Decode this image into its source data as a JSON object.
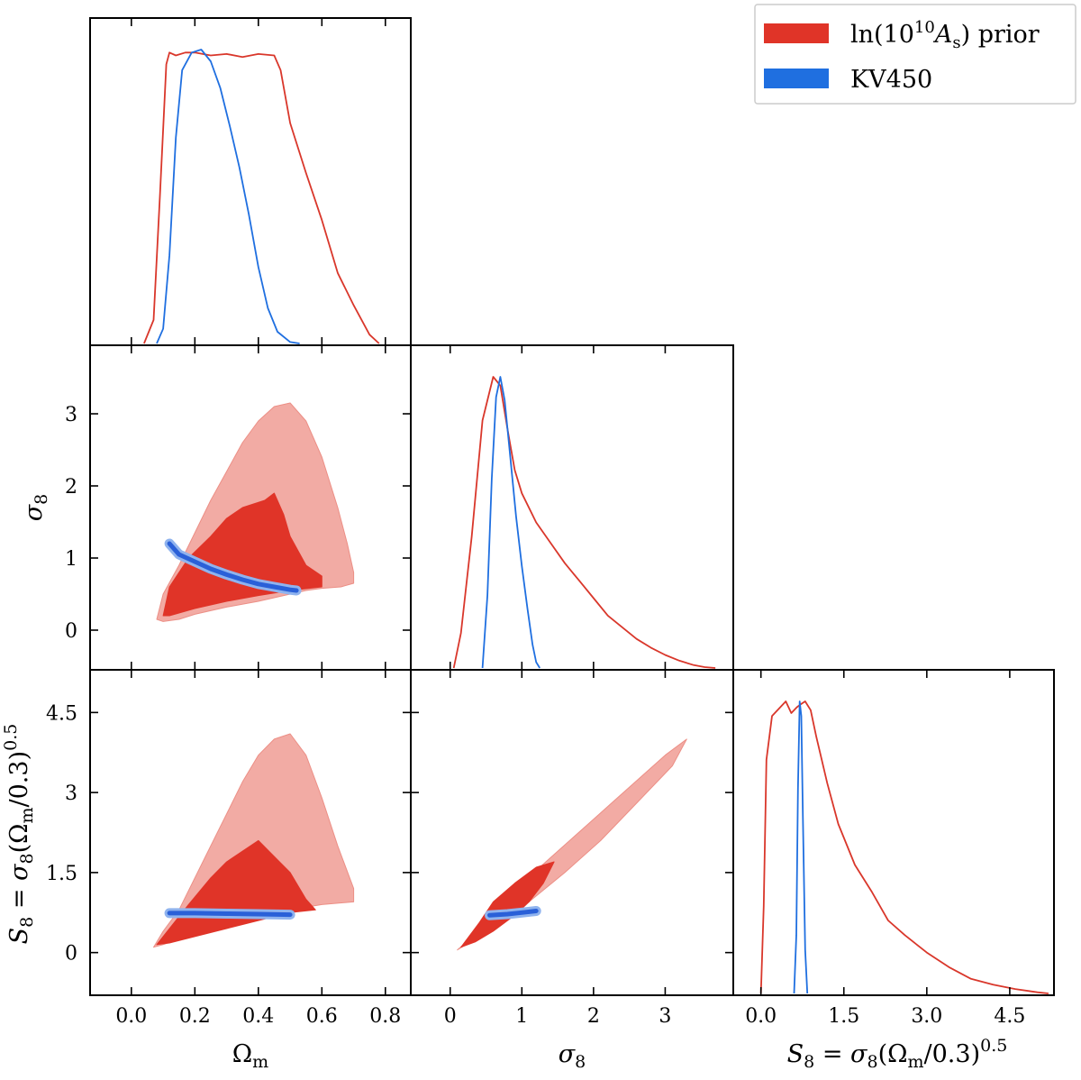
{
  "colors": {
    "prior_dark": "#e03428",
    "prior_light": "#f2aba4",
    "prior_line": "#d9372b",
    "kv_dark": "#2a60d8",
    "kv_light": "#8fb3ee",
    "kv_line": "#1f6fe0"
  },
  "legend": {
    "placement": "top-right",
    "items": [
      {
        "label": "ln(10^10 A_s) prior",
        "color": "#e03428"
      },
      {
        "label": "KV450",
        "color": "#1f6fe0"
      }
    ]
  },
  "axes": {
    "omega_m": {
      "label": "Ω_m",
      "ticks": [
        "0.0",
        "0.2",
        "0.4",
        "0.6",
        "0.8"
      ],
      "tick_values": [
        0.0,
        0.2,
        0.4,
        0.6,
        0.8
      ]
    },
    "sigma8": {
      "label": "σ_8",
      "ticks": [
        "0",
        "1",
        "2",
        "3"
      ],
      "tick_values": [
        0,
        1,
        2,
        3
      ]
    },
    "s8": {
      "label": "S_8 = σ_8(Ω_m/0.3)^0.5",
      "ticks": [
        "0",
        "1.5",
        "3",
        "4.5"
      ],
      "tick_values": [
        0,
        1.5,
        3,
        4.5
      ]
    },
    "s8_x": {
      "label": "S_8 = σ_8(Ω_m/0.3)^0.5",
      "ticks": [
        "0.0",
        "1.5",
        "3.0",
        "4.5"
      ],
      "tick_values": [
        0.0,
        1.5,
        3.0,
        4.5
      ]
    }
  },
  "chart_data": [
    {
      "type": "line",
      "panel": "Omega_m marginal",
      "xlim": [
        -0.13,
        0.88
      ],
      "series": [
        {
          "name": "ln(10^10 A_s) prior",
          "x": [
            0.04,
            0.07,
            0.09,
            0.11,
            0.12,
            0.14,
            0.17,
            0.2,
            0.25,
            0.3,
            0.35,
            0.4,
            0.45,
            0.47,
            0.5,
            0.55,
            0.6,
            0.65,
            0.7,
            0.75,
            0.78
          ],
          "y": [
            0,
            0.08,
            0.5,
            0.95,
            0.99,
            0.98,
            0.99,
            0.99,
            0.98,
            0.985,
            0.975,
            0.985,
            0.98,
            0.93,
            0.75,
            0.58,
            0.42,
            0.24,
            0.13,
            0.03,
            0
          ]
        },
        {
          "name": "KV450",
          "x": [
            0.08,
            0.1,
            0.12,
            0.14,
            0.16,
            0.19,
            0.22,
            0.25,
            0.28,
            0.31,
            0.34,
            0.37,
            0.4,
            0.43,
            0.46,
            0.5,
            0.53
          ],
          "y": [
            0,
            0.05,
            0.3,
            0.7,
            0.93,
            0.99,
            1.0,
            0.96,
            0.87,
            0.74,
            0.6,
            0.44,
            0.26,
            0.12,
            0.04,
            0.005,
            0
          ]
        }
      ]
    },
    {
      "type": "line",
      "panel": "sigma_8 marginal",
      "xlim": [
        -0.55,
        3.95
      ],
      "series": [
        {
          "name": "ln(10^10 A_s) prior",
          "x": [
            0.05,
            0.15,
            0.3,
            0.45,
            0.6,
            0.7,
            0.8,
            0.9,
            1.0,
            1.2,
            1.4,
            1.6,
            1.8,
            2.0,
            2.2,
            2.4,
            2.6,
            2.8,
            3.0,
            3.2,
            3.4,
            3.55,
            3.7
          ],
          "y": [
            0,
            0.12,
            0.45,
            0.85,
            1.0,
            0.97,
            0.82,
            0.68,
            0.6,
            0.5,
            0.43,
            0.36,
            0.3,
            0.24,
            0.18,
            0.14,
            0.1,
            0.07,
            0.045,
            0.025,
            0.01,
            0.003,
            0
          ]
        },
        {
          "name": "KV450",
          "x": [
            0.45,
            0.52,
            0.58,
            0.64,
            0.7,
            0.76,
            0.84,
            0.92,
            1.0,
            1.08,
            1.15,
            1.2,
            1.25
          ],
          "y": [
            0,
            0.25,
            0.65,
            0.93,
            1.0,
            0.92,
            0.72,
            0.52,
            0.35,
            0.2,
            0.08,
            0.02,
            0
          ]
        }
      ]
    },
    {
      "type": "line",
      "panel": "S_8 marginal",
      "xlim": [
        -0.5,
        5.3
      ],
      "series": [
        {
          "name": "ln(10^10 A_s) prior",
          "x": [
            0.0,
            0.05,
            0.1,
            0.2,
            0.3,
            0.45,
            0.55,
            0.65,
            0.72,
            0.8,
            0.9,
            1.0,
            1.2,
            1.4,
            1.7,
            2.0,
            2.3,
            2.6,
            3.0,
            3.4,
            3.8,
            4.2,
            4.6,
            5.0,
            5.2
          ],
          "y": [
            0,
            0.3,
            0.8,
            0.95,
            0.97,
            1.0,
            0.96,
            0.98,
            0.99,
            1.0,
            0.97,
            0.88,
            0.72,
            0.58,
            0.44,
            0.35,
            0.25,
            0.2,
            0.14,
            0.09,
            0.05,
            0.03,
            0.015,
            0.004,
            0
          ]
        },
        {
          "name": "KV450",
          "x": [
            0.6,
            0.64,
            0.67,
            0.7,
            0.73,
            0.76,
            0.8,
            0.84
          ],
          "y": [
            0,
            0.2,
            0.7,
            1.0,
            0.95,
            0.6,
            0.15,
            0
          ]
        }
      ]
    },
    {
      "type": "area",
      "panel": "sigma_8 vs Omega_m contours",
      "xlim": [
        -0.13,
        0.88
      ],
      "ylim": [
        -0.55,
        3.95
      ],
      "series": [
        {
          "name": "ln(10^10 A_s) prior",
          "level": "95%",
          "x": [
            0.08,
            0.1,
            0.15,
            0.2,
            0.25,
            0.3,
            0.35,
            0.4,
            0.45,
            0.5,
            0.55,
            0.6,
            0.65,
            0.68,
            0.7,
            0.7,
            0.66,
            0.6,
            0.55,
            0.5,
            0.45,
            0.4,
            0.3,
            0.2,
            0.15,
            0.1,
            0.08
          ],
          "y": [
            0.15,
            0.5,
            0.9,
            1.35,
            1.8,
            2.2,
            2.6,
            2.9,
            3.1,
            3.15,
            2.9,
            2.4,
            1.7,
            1.2,
            0.8,
            0.65,
            0.6,
            0.58,
            0.55,
            0.5,
            0.45,
            0.4,
            0.32,
            0.22,
            0.15,
            0.12,
            0.15
          ]
        },
        {
          "name": "ln(10^10 A_s) prior",
          "level": "68%",
          "x": [
            0.1,
            0.12,
            0.18,
            0.25,
            0.3,
            0.35,
            0.42,
            0.45,
            0.48,
            0.5,
            0.55,
            0.6,
            0.6,
            0.5,
            0.4,
            0.3,
            0.2,
            0.12,
            0.1
          ],
          "y": [
            0.2,
            0.6,
            1.0,
            1.3,
            1.55,
            1.7,
            1.8,
            1.9,
            1.6,
            1.3,
            0.9,
            0.75,
            0.6,
            0.55,
            0.48,
            0.4,
            0.3,
            0.2,
            0.2
          ]
        },
        {
          "name": "KV450",
          "level": "95%",
          "x": [
            0.12,
            0.15,
            0.2,
            0.25,
            0.3,
            0.35,
            0.4,
            0.45,
            0.5,
            0.52
          ],
          "y": [
            1.2,
            1.05,
            0.95,
            0.85,
            0.77,
            0.7,
            0.64,
            0.6,
            0.56,
            0.55
          ]
        }
      ]
    },
    {
      "type": "area",
      "panel": "S_8 vs Omega_m contours",
      "xlim": [
        -0.13,
        0.88
      ],
      "ylim": [
        -0.8,
        5.3
      ],
      "series": [
        {
          "name": "ln(10^10 A_s) prior",
          "level": "95%",
          "x": [
            0.07,
            0.1,
            0.15,
            0.2,
            0.25,
            0.3,
            0.35,
            0.4,
            0.45,
            0.5,
            0.55,
            0.6,
            0.65,
            0.7,
            0.7,
            0.6,
            0.5,
            0.4,
            0.3,
            0.2,
            0.1,
            0.07
          ],
          "y": [
            0.1,
            0.4,
            0.8,
            1.4,
            2.0,
            2.6,
            3.2,
            3.7,
            4.0,
            4.1,
            3.7,
            2.9,
            2.0,
            1.2,
            0.95,
            0.9,
            0.8,
            0.65,
            0.5,
            0.35,
            0.15,
            0.1
          ]
        },
        {
          "name": "ln(10^10 A_s) prior",
          "level": "68%",
          "x": [
            0.08,
            0.12,
            0.18,
            0.25,
            0.3,
            0.35,
            0.4,
            0.45,
            0.5,
            0.55,
            0.58,
            0.5,
            0.4,
            0.3,
            0.2,
            0.12,
            0.08
          ],
          "y": [
            0.15,
            0.45,
            0.9,
            1.4,
            1.7,
            1.9,
            2.1,
            1.8,
            1.5,
            1.0,
            0.8,
            0.75,
            0.6,
            0.45,
            0.3,
            0.18,
            0.15
          ]
        },
        {
          "name": "KV450",
          "level": "95%",
          "x": [
            0.12,
            0.2,
            0.3,
            0.4,
            0.5
          ],
          "y": [
            0.74,
            0.74,
            0.73,
            0.72,
            0.71
          ]
        }
      ]
    },
    {
      "type": "area",
      "panel": "S_8 vs sigma_8 contours",
      "xlim": [
        -0.55,
        3.95
      ],
      "ylim": [
        -0.8,
        5.3
      ],
      "series": [
        {
          "name": "ln(10^10 A_s) prior",
          "level": "95%",
          "x": [
            0.1,
            0.4,
            0.7,
            1.0,
            1.5,
            2.0,
            2.5,
            3.0,
            3.3,
            3.1,
            2.6,
            2.1,
            1.6,
            1.1,
            0.7,
            0.4,
            0.1
          ],
          "y": [
            0.05,
            0.4,
            0.85,
            1.3,
            1.9,
            2.5,
            3.1,
            3.7,
            4.0,
            3.5,
            2.8,
            2.1,
            1.5,
            0.95,
            0.6,
            0.3,
            0.05
          ]
        },
        {
          "name": "ln(10^10 A_s) prior",
          "level": "68%",
          "x": [
            0.15,
            0.4,
            0.6,
            0.9,
            1.2,
            1.45,
            1.3,
            1.1,
            0.9,
            0.6,
            0.35,
            0.15
          ],
          "y": [
            0.1,
            0.55,
            0.95,
            1.3,
            1.6,
            1.7,
            1.3,
            0.95,
            0.7,
            0.4,
            0.2,
            0.1
          ]
        },
        {
          "name": "KV450",
          "level": "95%",
          "x": [
            0.55,
            0.8,
            1.0,
            1.2
          ],
          "y": [
            0.7,
            0.72,
            0.75,
            0.78
          ]
        }
      ]
    }
  ]
}
